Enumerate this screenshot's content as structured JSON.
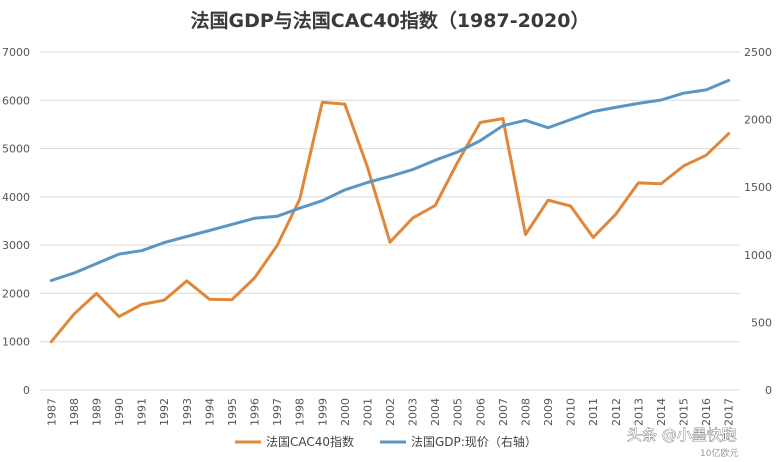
{
  "chart_data": {
    "type": "line",
    "title": "法国GDP与法国CAC40指数（1987-2020）",
    "categories": [
      "1987",
      "1988",
      "1989",
      "1990",
      "1991",
      "1992",
      "1993",
      "1994",
      "1995",
      "1996",
      "1997",
      "1998",
      "1999",
      "2000",
      "2001",
      "2002",
      "2003",
      "2004",
      "2005",
      "2006",
      "2007",
      "2008",
      "2009",
      "2010",
      "2011",
      "2012",
      "2013",
      "2014",
      "2015",
      "2016",
      "2017"
    ],
    "left_axis": {
      "ylim": [
        0,
        7000
      ],
      "ticks": [
        "0",
        "1000",
        "2000",
        "3000",
        "4000",
        "5000",
        "6000",
        "7000"
      ],
      "values": [
        0,
        1000,
        2000,
        3000,
        4000,
        5000,
        6000,
        7000
      ]
    },
    "right_axis": {
      "ylim": [
        0,
        2500
      ],
      "ticks": [
        "0",
        "500",
        "1000",
        "1500",
        "2000",
        "2500"
      ],
      "values": [
        0,
        500,
        1000,
        1500,
        2000,
        2500
      ]
    },
    "series": [
      {
        "name": "法国CAC40指数",
        "axis": "left",
        "color": "#e0873a",
        "values": [
          1000,
          1570,
          2000,
          1520,
          1770,
          1860,
          2260,
          1880,
          1870,
          2320,
          2990,
          3950,
          5960,
          5920,
          4620,
          3060,
          3560,
          3820,
          4720,
          5540,
          5620,
          3220,
          3930,
          3810,
          3160,
          3640,
          4290,
          4270,
          4640,
          4860,
          5310
        ]
      },
      {
        "name": "法国GDP:现价（右轴）",
        "axis": "right",
        "color": "#5b96c2",
        "values": [
          810,
          865,
          935,
          1005,
          1030,
          1090,
          1135,
          1180,
          1225,
          1270,
          1285,
          1345,
          1400,
          1480,
          1535,
          1580,
          1630,
          1700,
          1760,
          1845,
          1955,
          1995,
          1940,
          2000,
          2060,
          2090,
          2120,
          2145,
          2195,
          2220,
          2290
        ]
      }
    ],
    "legend_position": "bottom",
    "grid": true
  },
  "watermark": {
    "text": "头条 @小墨快跑",
    "subtext": "10亿欧元"
  }
}
